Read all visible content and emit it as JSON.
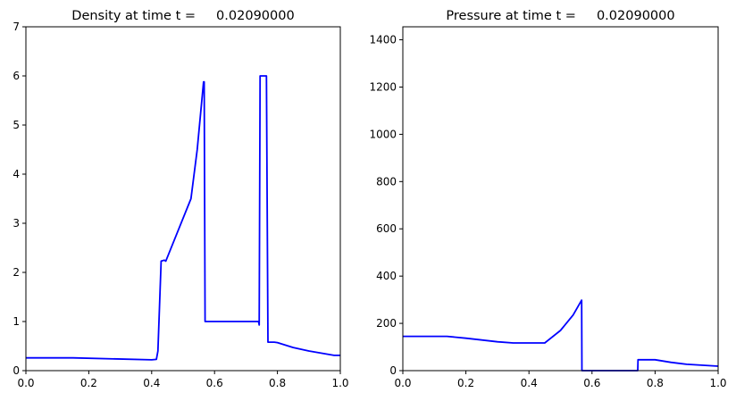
{
  "chart_data": [
    {
      "type": "line",
      "title": "Density at time t =     0.02090000",
      "xlabel": "",
      "ylabel": "",
      "xlim": [
        0,
        1
      ],
      "ylim": [
        0,
        7
      ],
      "xticks": [
        "0.0",
        "0.2",
        "0.4",
        "0.6",
        "0.8",
        "1.0"
      ],
      "yticks": [
        "0",
        "1",
        "2",
        "3",
        "4",
        "5",
        "6",
        "7"
      ],
      "grid": false,
      "color": "#0000ff",
      "x": [
        0,
        0.15,
        0.4,
        0.415,
        0.42,
        0.43,
        0.44,
        0.445,
        0.525,
        0.545,
        0.565,
        0.567,
        0.57,
        0.74,
        0.742,
        0.745,
        0.765,
        0.77,
        0.79,
        0.8,
        0.85,
        0.9,
        0.98,
        1.0
      ],
      "y": [
        0.26,
        0.26,
        0.22,
        0.23,
        0.4,
        2.23,
        2.25,
        2.23,
        3.5,
        4.5,
        5.88,
        5.88,
        1.0,
        1.0,
        0.93,
        6.0,
        6.0,
        0.58,
        0.58,
        0.57,
        0.47,
        0.4,
        0.31,
        0.31
      ]
    },
    {
      "type": "line",
      "title": "Pressure at time t =     0.02090000",
      "xlabel": "",
      "ylabel": "",
      "xlim": [
        0,
        1
      ],
      "ylim": [
        0,
        1455
      ],
      "xticks": [
        "0.0",
        "0.2",
        "0.4",
        "0.6",
        "0.8",
        "1.0"
      ],
      "yticks": [
        "0",
        "200",
        "400",
        "600",
        "800",
        "1000",
        "1200",
        "1400"
      ],
      "grid": false,
      "color": "#0000ff",
      "x": [
        0,
        0.14,
        0.2,
        0.3,
        0.35,
        0.45,
        0.5,
        0.54,
        0.567,
        0.568,
        0.745,
        0.746,
        0.8,
        0.85,
        0.9,
        1.0
      ],
      "y": [
        145,
        145,
        137,
        122,
        117,
        117,
        170,
        235,
        298,
        0,
        0,
        46,
        46,
        35,
        27,
        19
      ]
    }
  ]
}
